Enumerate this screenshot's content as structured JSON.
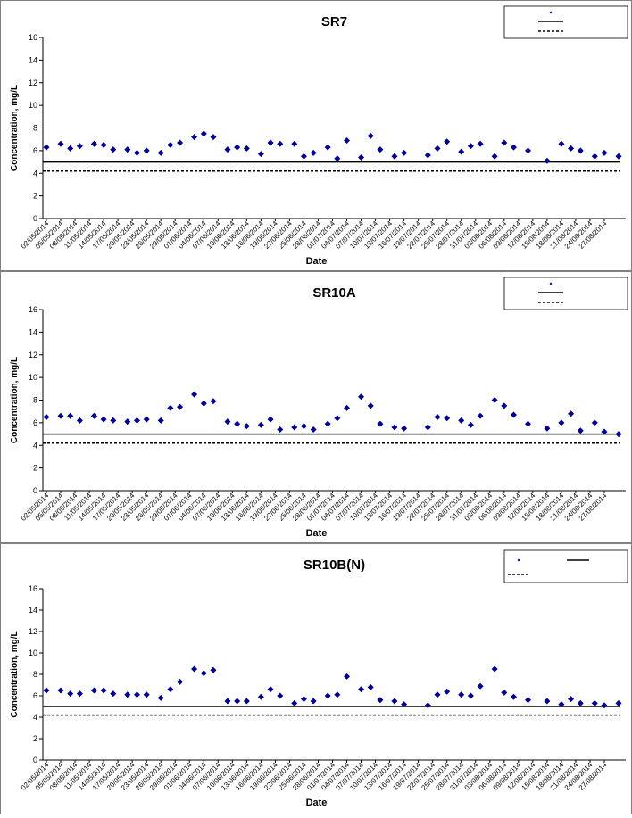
{
  "colors": {
    "marker": "#000099",
    "line": "#000000",
    "frame": "#808080"
  },
  "charts": [
    {
      "type": "scatter",
      "title": "SR7",
      "xlabel": "Date",
      "ylabel": "Concentration, mg/L",
      "ylim": [
        0,
        16
      ],
      "yticks": [
        "0",
        "2",
        "4",
        "6",
        "8",
        "10",
        "12",
        "14",
        "16"
      ],
      "x_range": [
        "02/05/2014",
        "30/08/2014"
      ],
      "xticks": [
        "02/05/2014",
        "05/05/2014",
        "08/05/2014",
        "11/05/2014",
        "14/05/2014",
        "17/05/2014",
        "20/05/2014",
        "23/05/2014",
        "26/05/2014",
        "29/05/2014",
        "01/06/2014",
        "04/06/2014",
        "07/06/2014",
        "10/06/2014",
        "13/06/2014",
        "16/06/2014",
        "19/06/2014",
        "22/06/2014",
        "25/06/2014",
        "28/06/2014",
        "01/07/2014",
        "04/07/2014",
        "07/07/2014",
        "10/07/2014",
        "13/07/2014",
        "16/07/2014",
        "19/07/2014",
        "22/07/2014",
        "25/07/2014",
        "28/07/2014",
        "31/07/2014",
        "03/08/2014",
        "06/08/2014",
        "09/08/2014",
        "12/08/2014",
        "15/08/2014",
        "18/08/2014",
        "21/08/2014",
        "24/08/2014",
        "27/08/2014"
      ],
      "legend_placement": "top-right",
      "legend": [
        "",
        "",
        ""
      ],
      "ref_lines": [
        {
          "value": 5.0,
          "style": "solid"
        },
        {
          "value": 4.2,
          "style": "dashed"
        }
      ],
      "points": [
        {
          "x": "02/05/2014",
          "y": 6.3
        },
        {
          "x": "05/05/2014",
          "y": 6.6
        },
        {
          "x": "07/05/2014",
          "y": 6.2
        },
        {
          "x": "09/05/2014",
          "y": 6.4
        },
        {
          "x": "12/05/2014",
          "y": 6.6
        },
        {
          "x": "14/05/2014",
          "y": 6.5
        },
        {
          "x": "16/05/2014",
          "y": 6.1
        },
        {
          "x": "19/05/2014",
          "y": 6.1
        },
        {
          "x": "21/05/2014",
          "y": 5.8
        },
        {
          "x": "23/05/2014",
          "y": 6.0
        },
        {
          "x": "26/05/2014",
          "y": 5.8
        },
        {
          "x": "28/05/2014",
          "y": 6.5
        },
        {
          "x": "30/05/2014",
          "y": 6.7
        },
        {
          "x": "02/06/2014",
          "y": 7.2
        },
        {
          "x": "04/06/2014",
          "y": 7.5
        },
        {
          "x": "06/06/2014",
          "y": 7.2
        },
        {
          "x": "09/06/2014",
          "y": 6.1
        },
        {
          "x": "11/06/2014",
          "y": 6.3
        },
        {
          "x": "13/06/2014",
          "y": 6.2
        },
        {
          "x": "16/06/2014",
          "y": 5.7
        },
        {
          "x": "18/06/2014",
          "y": 6.7
        },
        {
          "x": "20/06/2014",
          "y": 6.6
        },
        {
          "x": "23/06/2014",
          "y": 6.6
        },
        {
          "x": "25/06/2014",
          "y": 5.5
        },
        {
          "x": "27/06/2014",
          "y": 5.8
        },
        {
          "x": "30/06/2014",
          "y": 6.3
        },
        {
          "x": "02/07/2014",
          "y": 5.3
        },
        {
          "x": "04/07/2014",
          "y": 6.9
        },
        {
          "x": "07/07/2014",
          "y": 5.4
        },
        {
          "x": "09/07/2014",
          "y": 7.3
        },
        {
          "x": "11/07/2014",
          "y": 6.1
        },
        {
          "x": "14/07/2014",
          "y": 5.5
        },
        {
          "x": "16/07/2014",
          "y": 5.8
        },
        {
          "x": "21/07/2014",
          "y": 5.6
        },
        {
          "x": "23/07/2014",
          "y": 6.2
        },
        {
          "x": "25/07/2014",
          "y": 6.8
        },
        {
          "x": "28/07/2014",
          "y": 5.9
        },
        {
          "x": "30/07/2014",
          "y": 6.4
        },
        {
          "x": "01/08/2014",
          "y": 6.6
        },
        {
          "x": "04/08/2014",
          "y": 5.5
        },
        {
          "x": "06/08/2014",
          "y": 6.7
        },
        {
          "x": "08/08/2014",
          "y": 6.3
        },
        {
          "x": "11/08/2014",
          "y": 6.0
        },
        {
          "x": "15/08/2014",
          "y": 5.1
        },
        {
          "x": "18/08/2014",
          "y": 6.6
        },
        {
          "x": "20/08/2014",
          "y": 6.2
        },
        {
          "x": "22/08/2014",
          "y": 6.0
        },
        {
          "x": "25/08/2014",
          "y": 5.5
        },
        {
          "x": "27/08/2014",
          "y": 5.8
        },
        {
          "x": "30/08/2014",
          "y": 5.5
        }
      ]
    },
    {
      "type": "scatter",
      "title": "SR10A",
      "xlabel": "Date",
      "ylabel": "Concentration, mg/L",
      "ylim": [
        0,
        16
      ],
      "yticks": [
        "0",
        "2",
        "4",
        "6",
        "8",
        "10",
        "12",
        "14",
        "16"
      ],
      "x_range": [
        "02/05/2014",
        "30/08/2014"
      ],
      "xticks": [
        "02/05/2014",
        "05/05/2014",
        "08/05/2014",
        "11/05/2014",
        "14/05/2014",
        "17/05/2014",
        "20/05/2014",
        "23/05/2014",
        "26/05/2014",
        "29/05/2014",
        "01/06/2014",
        "04/06/2014",
        "07/06/2014",
        "10/06/2014",
        "13/06/2014",
        "16/06/2014",
        "19/06/2014",
        "22/06/2014",
        "25/06/2014",
        "28/06/2014",
        "01/07/2014",
        "04/07/2014",
        "07/07/2014",
        "10/07/2014",
        "13/07/2014",
        "16/07/2014",
        "19/07/2014",
        "22/07/2014",
        "25/07/2014",
        "28/07/2014",
        "31/07/2014",
        "03/08/2014",
        "06/08/2014",
        "09/08/2014",
        "12/08/2014",
        "15/08/2014",
        "18/08/2014",
        "21/08/2014",
        "24/08/2014",
        "27/08/2014"
      ],
      "legend_placement": "top-right",
      "legend": [
        "",
        "",
        ""
      ],
      "ref_lines": [
        {
          "value": 5.0,
          "style": "solid"
        },
        {
          "value": 4.2,
          "style": "dashed"
        }
      ],
      "points": [
        {
          "x": "02/05/2014",
          "y": 6.5
        },
        {
          "x": "05/05/2014",
          "y": 6.6
        },
        {
          "x": "07/05/2014",
          "y": 6.6
        },
        {
          "x": "09/05/2014",
          "y": 6.2
        },
        {
          "x": "12/05/2014",
          "y": 6.6
        },
        {
          "x": "14/05/2014",
          "y": 6.3
        },
        {
          "x": "16/05/2014",
          "y": 6.2
        },
        {
          "x": "19/05/2014",
          "y": 6.1
        },
        {
          "x": "21/05/2014",
          "y": 6.2
        },
        {
          "x": "23/05/2014",
          "y": 6.3
        },
        {
          "x": "26/05/2014",
          "y": 6.2
        },
        {
          "x": "28/05/2014",
          "y": 7.3
        },
        {
          "x": "30/05/2014",
          "y": 7.4
        },
        {
          "x": "02/06/2014",
          "y": 8.5
        },
        {
          "x": "04/06/2014",
          "y": 7.7
        },
        {
          "x": "06/06/2014",
          "y": 7.9
        },
        {
          "x": "09/06/2014",
          "y": 6.1
        },
        {
          "x": "11/06/2014",
          "y": 5.9
        },
        {
          "x": "13/06/2014",
          "y": 5.7
        },
        {
          "x": "16/06/2014",
          "y": 5.8
        },
        {
          "x": "18/06/2014",
          "y": 6.3
        },
        {
          "x": "20/06/2014",
          "y": 5.4
        },
        {
          "x": "23/06/2014",
          "y": 5.6
        },
        {
          "x": "25/06/2014",
          "y": 5.7
        },
        {
          "x": "27/06/2014",
          "y": 5.4
        },
        {
          "x": "30/06/2014",
          "y": 5.9
        },
        {
          "x": "02/07/2014",
          "y": 6.4
        },
        {
          "x": "04/07/2014",
          "y": 7.3
        },
        {
          "x": "07/07/2014",
          "y": 8.3
        },
        {
          "x": "09/07/2014",
          "y": 7.5
        },
        {
          "x": "11/07/2014",
          "y": 5.9
        },
        {
          "x": "14/07/2014",
          "y": 5.6
        },
        {
          "x": "16/07/2014",
          "y": 5.5
        },
        {
          "x": "21/07/2014",
          "y": 5.6
        },
        {
          "x": "23/07/2014",
          "y": 6.5
        },
        {
          "x": "25/07/2014",
          "y": 6.4
        },
        {
          "x": "28/07/2014",
          "y": 6.2
        },
        {
          "x": "30/07/2014",
          "y": 5.8
        },
        {
          "x": "01/08/2014",
          "y": 6.6
        },
        {
          "x": "04/08/2014",
          "y": 8.0
        },
        {
          "x": "06/08/2014",
          "y": 7.5
        },
        {
          "x": "08/08/2014",
          "y": 6.7
        },
        {
          "x": "11/08/2014",
          "y": 5.9
        },
        {
          "x": "15/08/2014",
          "y": 5.5
        },
        {
          "x": "18/08/2014",
          "y": 6.0
        },
        {
          "x": "20/08/2014",
          "y": 6.8
        },
        {
          "x": "22/08/2014",
          "y": 5.3
        },
        {
          "x": "25/08/2014",
          "y": 6.0
        },
        {
          "x": "27/08/2014",
          "y": 5.2
        },
        {
          "x": "30/08/2014",
          "y": 5.0
        }
      ]
    },
    {
      "type": "scatter",
      "title": "SR10B(N)",
      "xlabel": "Date",
      "ylabel": "Concentration, mg/L",
      "ylim": [
        0,
        16
      ],
      "yticks": [
        "0",
        "2",
        "4",
        "6",
        "8",
        "10",
        "12",
        "14",
        "16"
      ],
      "x_range": [
        "02/05/2014",
        "30/08/2014"
      ],
      "xticks": [
        "02/05/2014",
        "05/05/2014",
        "08/05/2014",
        "11/05/2014",
        "14/05/2014",
        "17/05/2014",
        "20/05/2014",
        "23/05/2014",
        "26/05/2014",
        "29/05/2014",
        "01/06/2014",
        "04/06/2014",
        "07/06/2014",
        "10/06/2014",
        "13/06/2014",
        "16/06/2014",
        "19/06/2014",
        "22/06/2014",
        "25/06/2014",
        "28/06/2014",
        "01/07/2014",
        "04/07/2014",
        "07/07/2014",
        "10/07/2014",
        "13/07/2014",
        "16/07/2014",
        "19/07/2014",
        "22/07/2014",
        "25/07/2014",
        "28/07/2014",
        "31/07/2014",
        "03/08/2014",
        "06/08/2014",
        "09/08/2014",
        "12/08/2014",
        "15/08/2014",
        "18/08/2014",
        "21/08/2014",
        "24/08/2014",
        "27/08/2014"
      ],
      "legend_placement": "top-right",
      "legend": [
        "",
        "",
        ""
      ],
      "ref_lines": [
        {
          "value": 5.0,
          "style": "solid"
        },
        {
          "value": 4.2,
          "style": "dashed"
        }
      ],
      "points": [
        {
          "x": "02/05/2014",
          "y": 6.5
        },
        {
          "x": "05/05/2014",
          "y": 6.5
        },
        {
          "x": "07/05/2014",
          "y": 6.2
        },
        {
          "x": "09/05/2014",
          "y": 6.2
        },
        {
          "x": "12/05/2014",
          "y": 6.5
        },
        {
          "x": "14/05/2014",
          "y": 6.5
        },
        {
          "x": "16/05/2014",
          "y": 6.2
        },
        {
          "x": "19/05/2014",
          "y": 6.1
        },
        {
          "x": "21/05/2014",
          "y": 6.1
        },
        {
          "x": "23/05/2014",
          "y": 6.1
        },
        {
          "x": "26/05/2014",
          "y": 5.8
        },
        {
          "x": "28/05/2014",
          "y": 6.6
        },
        {
          "x": "30/05/2014",
          "y": 7.3
        },
        {
          "x": "02/06/2014",
          "y": 8.5
        },
        {
          "x": "04/06/2014",
          "y": 8.1
        },
        {
          "x": "06/06/2014",
          "y": 8.4
        },
        {
          "x": "09/06/2014",
          "y": 5.5
        },
        {
          "x": "11/06/2014",
          "y": 5.5
        },
        {
          "x": "13/06/2014",
          "y": 5.5
        },
        {
          "x": "16/06/2014",
          "y": 5.9
        },
        {
          "x": "18/06/2014",
          "y": 6.6
        },
        {
          "x": "20/06/2014",
          "y": 6.0
        },
        {
          "x": "23/06/2014",
          "y": 5.3
        },
        {
          "x": "25/06/2014",
          "y": 5.7
        },
        {
          "x": "27/06/2014",
          "y": 5.5
        },
        {
          "x": "30/06/2014",
          "y": 6.0
        },
        {
          "x": "02/07/2014",
          "y": 6.1
        },
        {
          "x": "04/07/2014",
          "y": 7.8
        },
        {
          "x": "07/07/2014",
          "y": 6.6
        },
        {
          "x": "09/07/2014",
          "y": 6.8
        },
        {
          "x": "11/07/2014",
          "y": 5.6
        },
        {
          "x": "14/07/2014",
          "y": 5.5
        },
        {
          "x": "16/07/2014",
          "y": 5.2
        },
        {
          "x": "21/07/2014",
          "y": 5.1
        },
        {
          "x": "23/07/2014",
          "y": 6.1
        },
        {
          "x": "25/07/2014",
          "y": 6.4
        },
        {
          "x": "28/07/2014",
          "y": 6.1
        },
        {
          "x": "30/07/2014",
          "y": 6.0
        },
        {
          "x": "01/08/2014",
          "y": 6.9
        },
        {
          "x": "04/08/2014",
          "y": 8.5
        },
        {
          "x": "06/08/2014",
          "y": 6.3
        },
        {
          "x": "08/08/2014",
          "y": 5.9
        },
        {
          "x": "11/08/2014",
          "y": 5.6
        },
        {
          "x": "15/08/2014",
          "y": 5.5
        },
        {
          "x": "18/08/2014",
          "y": 5.2
        },
        {
          "x": "20/08/2014",
          "y": 5.7
        },
        {
          "x": "22/08/2014",
          "y": 5.3
        },
        {
          "x": "25/08/2014",
          "y": 5.3
        },
        {
          "x": "27/08/2014",
          "y": 5.1
        },
        {
          "x": "30/08/2014",
          "y": 5.3
        }
      ]
    }
  ]
}
